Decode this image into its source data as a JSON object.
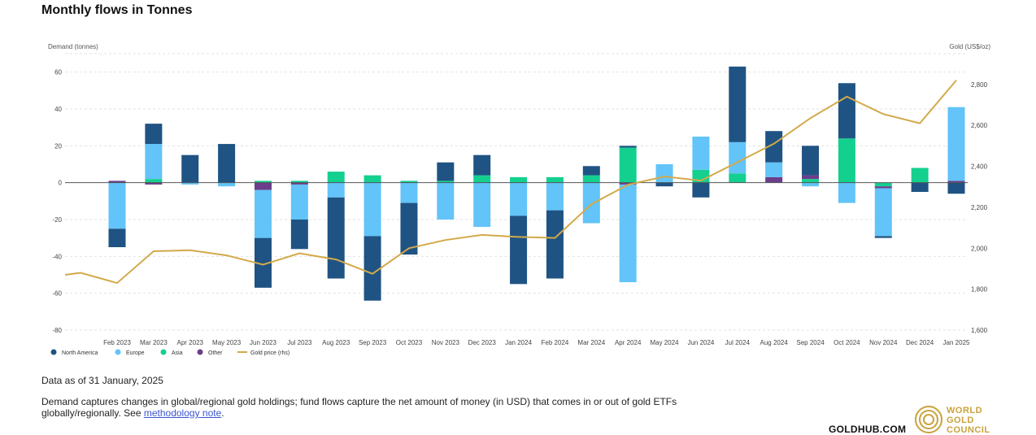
{
  "title": "Monthly flows in Tonnes",
  "as_of": "Data as of 31 January, 2025",
  "note": {
    "text": "Demand captures changes in global/regional gold holdings; fund flows capture the net amount of money (in USD) that comes in or out of gold ETFs globally/regionally. See ",
    "link": "methodology note",
    "end": "."
  },
  "site": "GOLDHUB.COM",
  "logo": {
    "line1": "WORLD",
    "line2": "GOLD",
    "line3": "COUNCIL"
  },
  "colors": {
    "north_america": "#1f5383",
    "europe": "#62c4f8",
    "asia": "#13d08e",
    "other": "#6b3d8b",
    "gold_price": "#d3a94a",
    "logo": "#c9a23b"
  },
  "chart_data": {
    "type": "bar",
    "stacked": true,
    "ylabel": "Demand (tonnes)",
    "y2label": "Gold (US$/oz)",
    "ylim": [
      -80,
      70
    ],
    "y_ticks": [
      60,
      40,
      20,
      0,
      -20,
      -40,
      -60,
      -80
    ],
    "y2lim": [
      1600,
      2950
    ],
    "y2_ticks": [
      "2,800",
      "2,600",
      "2,400",
      "2,200",
      "2,000",
      "1,800",
      "1,600"
    ],
    "y2_tick_values": [
      2800,
      2600,
      2400,
      2200,
      2000,
      1800,
      1600
    ],
    "grid": true,
    "legend_position": "bottom-left",
    "categories": [
      "Feb 2023",
      "Mar 2023",
      "Apr 2023",
      "May 2023",
      "Jun 2023",
      "Jul 2023",
      "Aug 2023",
      "Sep 2023",
      "Oct 2023",
      "Nov 2023",
      "Dec 2023",
      "Jan 2024",
      "Feb 2024",
      "Mar 2024",
      "Apr 2024",
      "May 2024",
      "Jun 2024",
      "Jul 2024",
      "Aug 2024",
      "Sep 2024",
      "Oct 2024",
      "Nov 2024",
      "Dec 2024",
      "Jan 2025"
    ],
    "series": [
      {
        "name": "North America",
        "values": [
          -10,
          11,
          15,
          21,
          -27,
          -16,
          -44,
          -35,
          -28,
          10,
          11,
          -37,
          -37,
          5,
          1,
          -2,
          -8,
          41,
          17,
          16,
          30,
          -1,
          -5,
          -6
        ]
      },
      {
        "name": "Europe",
        "values": [
          -25,
          19,
          -1,
          -2,
          -26,
          -19,
          -8,
          -29,
          -11,
          -20,
          -24,
          -18,
          -15,
          -22,
          -53,
          10,
          18,
          17,
          8,
          -2,
          -11,
          -26,
          0,
          40
        ]
      },
      {
        "name": "Asia",
        "values": [
          0,
          2,
          0,
          0,
          1,
          1,
          6,
          4,
          1,
          1,
          4,
          3,
          3,
          4,
          19,
          0,
          7,
          5,
          0,
          2,
          24,
          -2,
          8,
          0
        ]
      },
      {
        "name": "Other",
        "values": [
          1,
          -1,
          0,
          0,
          -4,
          -1,
          0,
          0,
          0,
          0,
          0,
          0,
          0,
          0,
          -1,
          0,
          0,
          0,
          3,
          2,
          0,
          -1,
          0,
          1
        ]
      }
    ],
    "line_series": {
      "name": "Gold price (rhs)",
      "axis": "right",
      "x_labels": [
        "Jan 2023",
        "Feb 2023",
        "Mar 2023",
        "Apr 2023",
        "May 2023",
        "Jun 2023",
        "Jul 2023",
        "Aug 2023",
        "Sep 2023",
        "Oct 2023",
        "Nov 2023",
        "Dec 2023",
        "Jan 2024",
        "Feb 2024",
        "Mar 2024",
        "Apr 2024",
        "May 2024",
        "Jun 2024",
        "Jul 2024",
        "Aug 2024",
        "Sep 2024",
        "Oct 2024",
        "Nov 2024",
        "Dec 2024",
        "Jan 2025"
      ],
      "values": [
        1880,
        1830,
        1985,
        1990,
        1965,
        1920,
        1975,
        1945,
        1875,
        2000,
        2040,
        2065,
        2055,
        2050,
        2215,
        2310,
        2350,
        2330,
        2420,
        2510,
        2635,
        2740,
        2655,
        2610,
        2820
      ],
      "start_value": 1870
    }
  }
}
